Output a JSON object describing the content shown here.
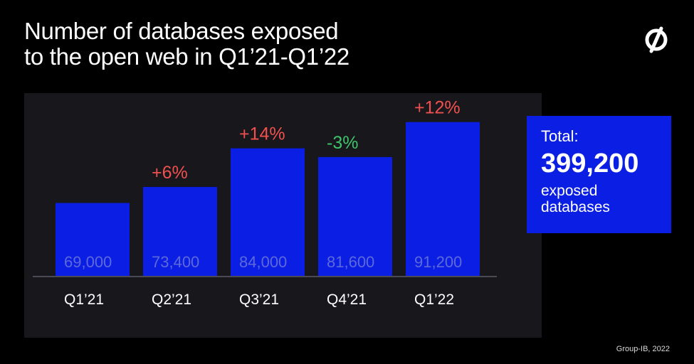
{
  "title": "Number of databases exposed\nto the open web in Q1’21-Q1’22",
  "logo_icon": "group-ib-logo-icon",
  "colors": {
    "background": "#000000",
    "panel": "#17171c",
    "bar": "#0a1fe3",
    "value_label": "#5e69d9",
    "increase": "#f0514f",
    "decrease": "#3fc46a"
  },
  "chart_data": {
    "type": "bar",
    "categories": [
      "Q1’21",
      "Q2’21",
      "Q3’21",
      "Q4’21",
      "Q1’22"
    ],
    "values": [
      69000,
      73400,
      84000,
      81600,
      91200
    ],
    "value_labels": [
      "69,000",
      "73,400",
      "84,000",
      "81,600",
      "91,200"
    ],
    "changes": [
      "",
      "+6%",
      "+14%",
      "-3%",
      "+12%"
    ],
    "xlabel": "",
    "ylabel": "",
    "ylim": [
      0,
      100000
    ],
    "grid": false,
    "legend": "none"
  },
  "total": {
    "label": "Total:",
    "value": "399,200",
    "description": "exposed\ndatabases"
  },
  "source": "Group-IB, 2022"
}
